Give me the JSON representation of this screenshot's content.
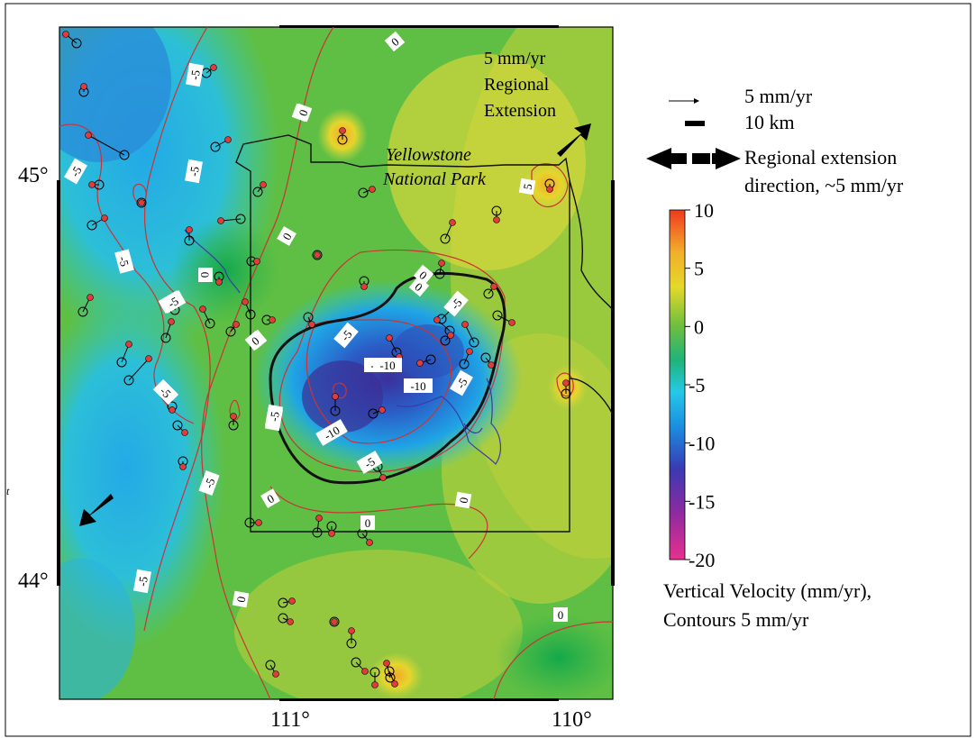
{
  "map": {
    "latitude_labels": [
      "45°",
      "44°"
    ],
    "longitude_labels": [
      "111°",
      "110°"
    ],
    "park_label_line1": "Yellowstone",
    "park_label_line2": "National Park",
    "corner_label_line1": "5 mm/yr",
    "corner_label_line2": "Regional",
    "corner_label_line3": "Extension",
    "edge_mark": "t",
    "contour_labels": [
      "0",
      "-5",
      "0",
      "-5",
      "-5",
      "0",
      "-5",
      "-5",
      "0",
      "0",
      "0",
      "-5",
      "-5",
      "0",
      "0",
      "-10",
      "-10",
      "-10",
      "-5",
      "-5",
      "-5",
      "-5",
      "0",
      "0",
      "0",
      "-5",
      "0",
      "0",
      "5",
      "-5",
      "-5",
      "-10",
      "-5",
      "0"
    ]
  },
  "legend": {
    "vector_scale_label": "5 mm/yr",
    "bar_scale_label": "10 km",
    "extension_line1": "Regional extension",
    "extension_line2": "direction, ~5 mm/yr",
    "colorbar_ticks": [
      "10",
      "5",
      "0",
      "-5",
      "-10",
      "-15",
      "-20"
    ],
    "colorbar_title_line1": "Vertical Velocity (mm/yr),",
    "colorbar_title_line2": "Contours 5 mm/yr"
  },
  "colors": {
    "contour": "#cc3333",
    "thick_contour": "#111111",
    "river": "#3a3aaa",
    "station": "#e23b3b",
    "colormap": [
      "#e8308e",
      "#8a2aa0",
      "#3a3ab4",
      "#1a8ee0",
      "#27c8e6",
      "#1fb37a",
      "#2fb24a",
      "#9acb3b",
      "#e4d92a",
      "#f2ae2a",
      "#ee3a1e"
    ]
  }
}
